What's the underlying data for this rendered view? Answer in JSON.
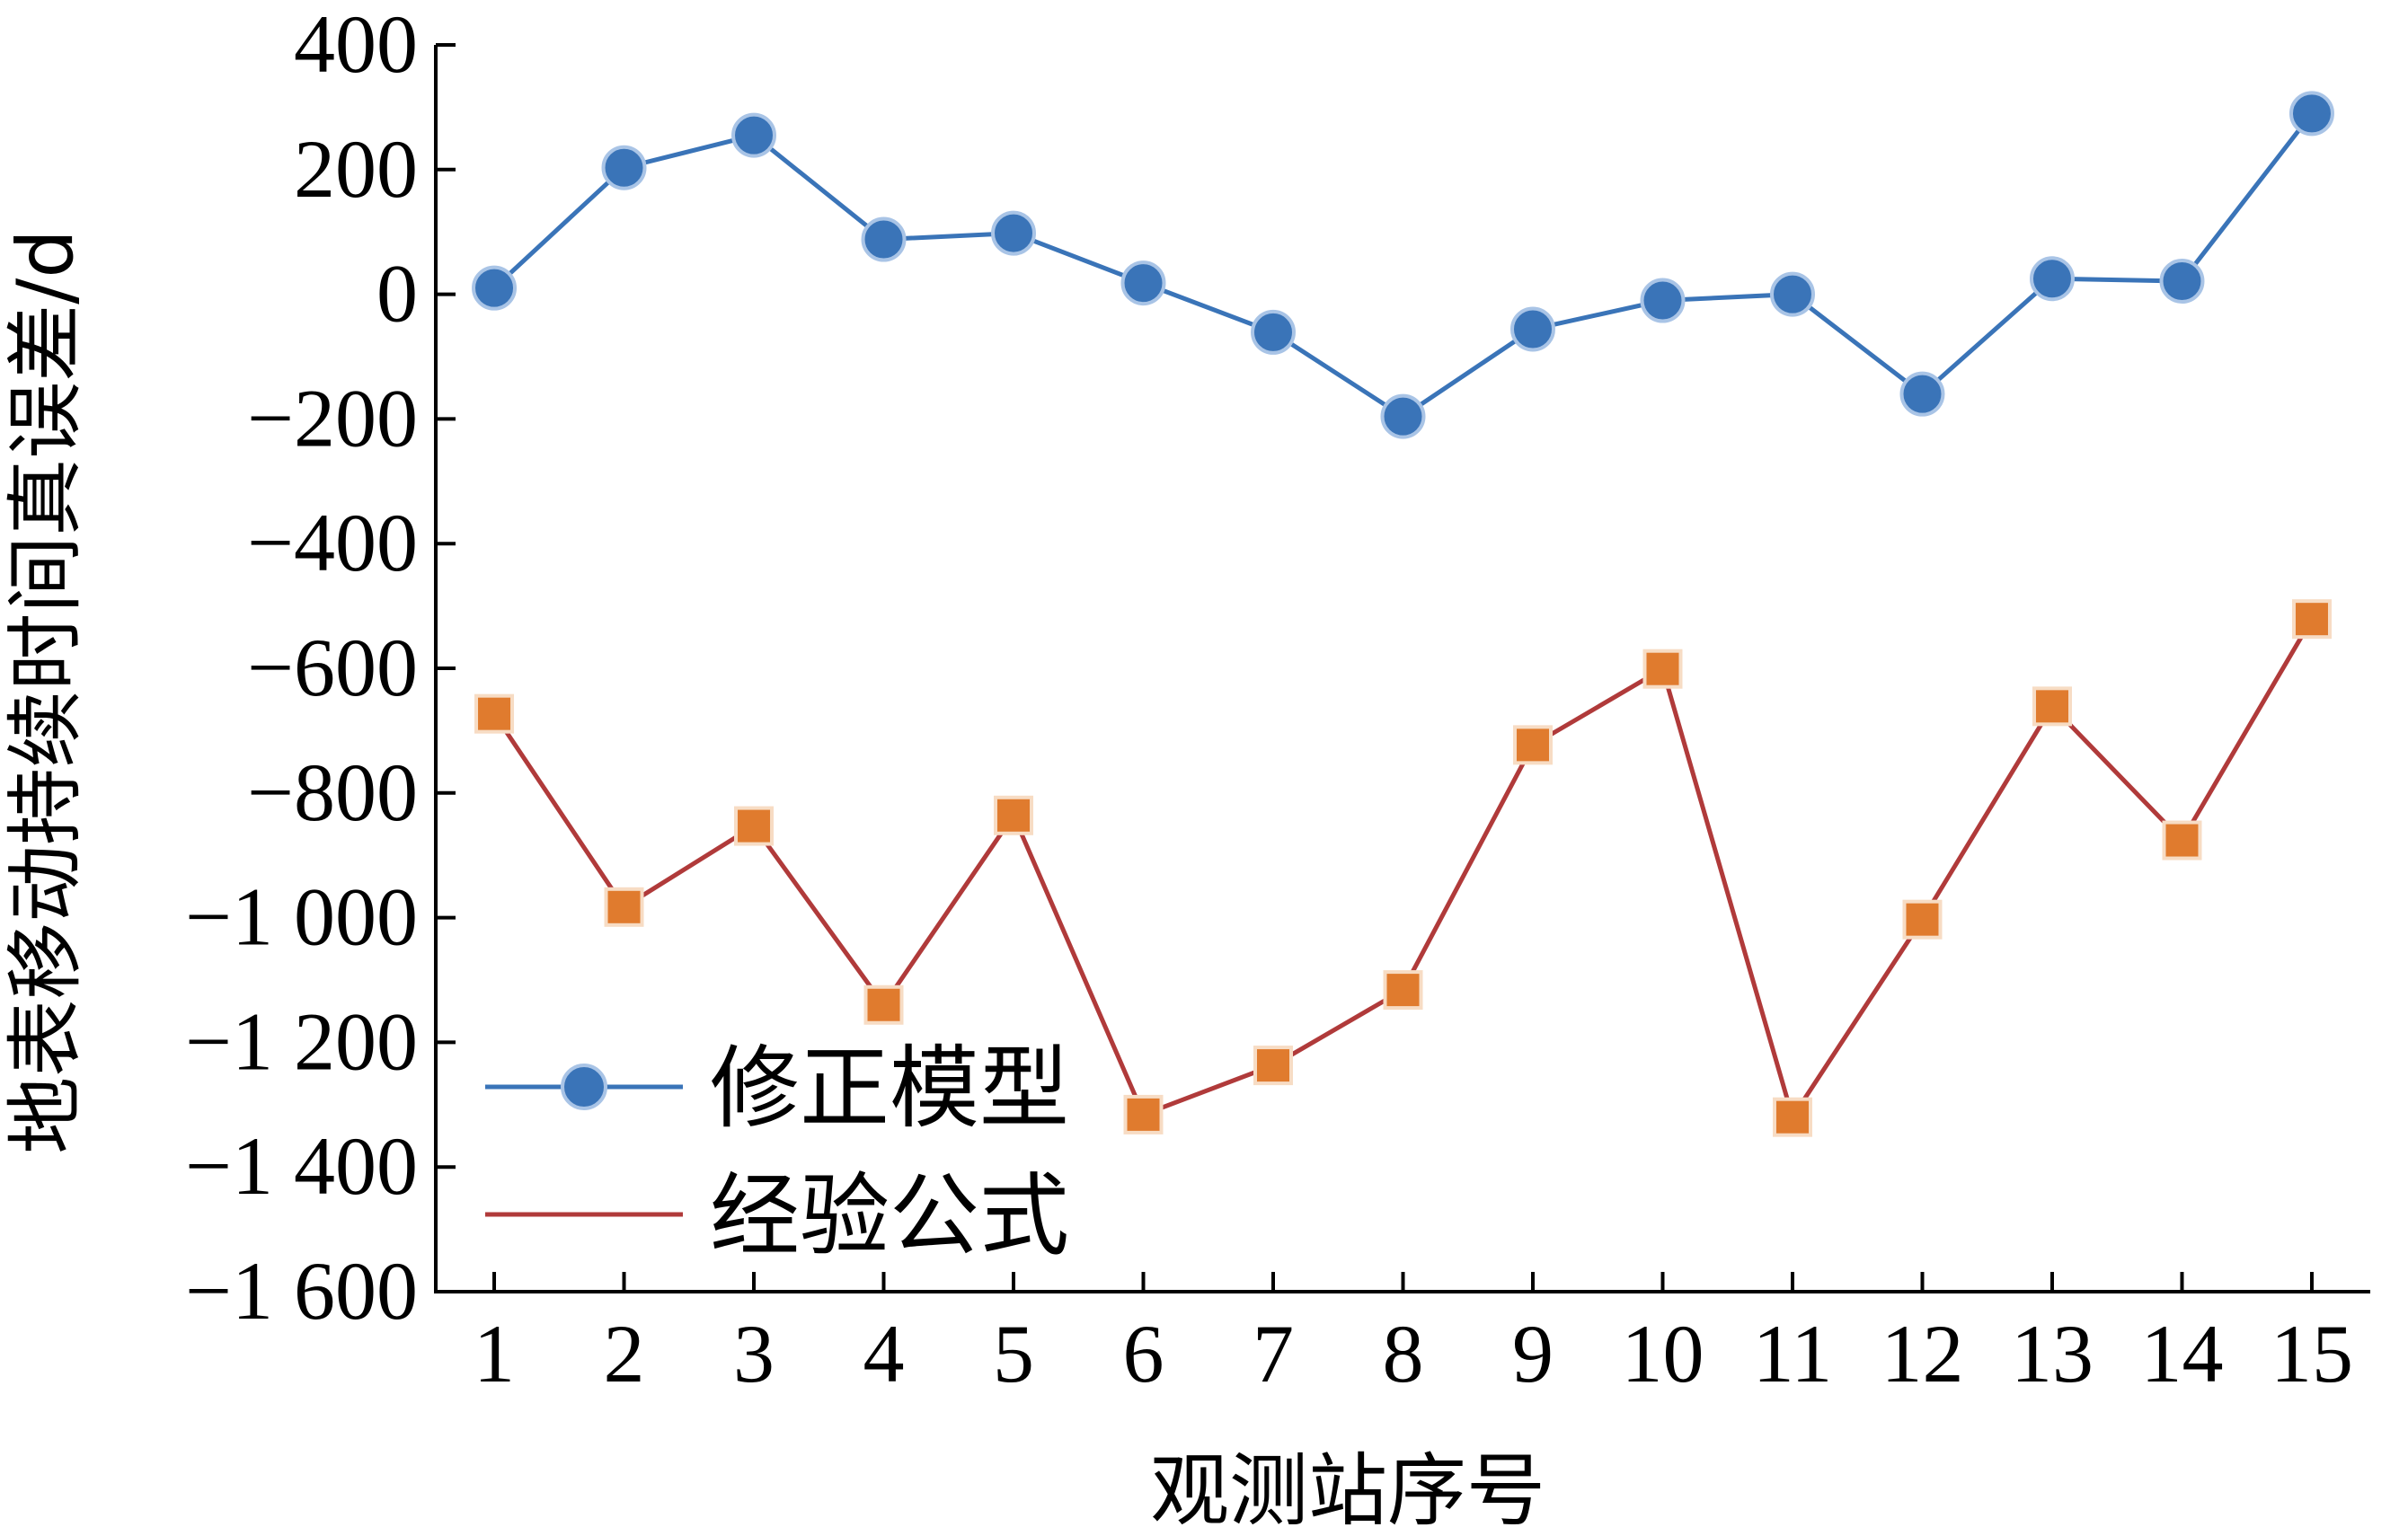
{
  "chart_data": {
    "type": "line",
    "title": "",
    "xlabel": "观测站序号",
    "ylabel": "地表移动持续时间真误差/d",
    "categories": [
      "1",
      "2",
      "3",
      "4",
      "5",
      "6",
      "7",
      "8",
      "9",
      "10",
      "11",
      "12",
      "13",
      "14",
      "15"
    ],
    "x": [
      1,
      2,
      3,
      4,
      5,
      6,
      7,
      8,
      9,
      10,
      11,
      12,
      13,
      14,
      15
    ],
    "xlim": [
      0.55,
      15.45
    ],
    "ylim": [
      -1600,
      400
    ],
    "yticks": [
      400,
      200,
      0,
      -200,
      -400,
      -600,
      -800,
      -1000,
      -1200,
      -1400,
      -1600
    ],
    "ytick_labels": [
      "400",
      "200",
      "0",
      "−200",
      "−400",
      "−600",
      "−800",
      "−1 000",
      "−1 200",
      "−1 400",
      "−1 600"
    ],
    "grid": false,
    "legend_position": "bottom-left",
    "series": [
      {
        "name": "修正模型",
        "marker": "circle",
        "color": "#3a74b8",
        "values": [
          10,
          203,
          255,
          88,
          98,
          18,
          -61,
          -196,
          -56,
          -10,
          0,
          -160,
          25,
          21,
          290
        ]
      },
      {
        "name": "经验公式",
        "marker": "square",
        "color": "#e07b2e",
        "line_color": "#b03a3a",
        "values": [
          -673,
          -983,
          -853,
          -1140,
          -836,
          -1316,
          -1237,
          -1116,
          -723,
          -601,
          -1320,
          -1003,
          -661,
          -876,
          -521
        ]
      }
    ]
  }
}
